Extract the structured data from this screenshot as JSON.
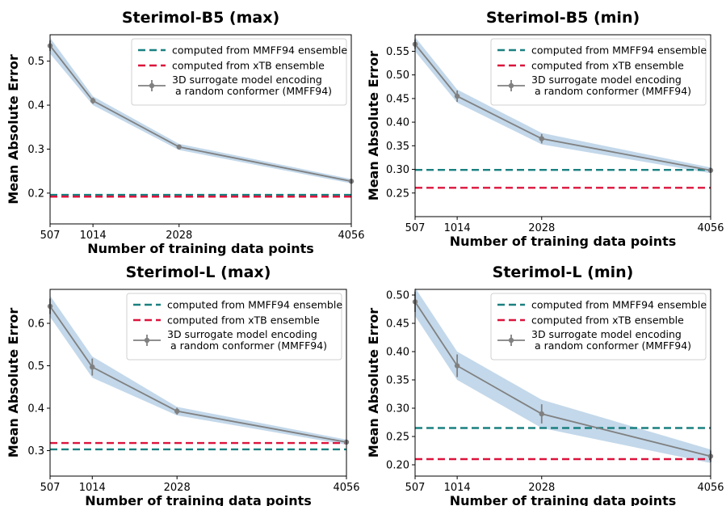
{
  "chart_data": [
    {
      "type": "line",
      "title": "Sterimol-B5 (max)",
      "xlabel": "Number of training data points",
      "ylabel": "Mean Absolute Error",
      "x": [
        507,
        1014,
        2028,
        4056
      ],
      "xticks": [
        "507",
        "1014",
        "2028",
        "4056"
      ],
      "xlim": [
        507,
        4056
      ],
      "ylim": [
        0.13,
        0.56
      ],
      "yticks": [
        0.2,
        0.3,
        0.4,
        0.5
      ],
      "ytick_labels": [
        "0.2",
        "0.3",
        "0.4",
        "0.5"
      ],
      "series": [
        {
          "name": "3D surrogate model encoding\n a random conformer (MMFF94)",
          "values": [
            0.535,
            0.41,
            0.305,
            0.227
          ],
          "err": [
            0.012,
            0.007,
            0.004,
            0.002
          ],
          "band": [
            0.018,
            0.01,
            0.007,
            0.005
          ],
          "color": "#808080",
          "style": "errorbar"
        },
        {
          "name": "computed from MMFF94 ensemble",
          "value": 0.196,
          "color": "#1a8080",
          "style": "hline-dashed"
        },
        {
          "name": "computed from xTB ensemble",
          "value": 0.192,
          "color": "#dc143c",
          "style": "hline-dashed"
        }
      ],
      "legend": "top-right"
    },
    {
      "type": "line",
      "title": "Sterimol-B5 (min)",
      "xlabel": "Number of training data points",
      "ylabel": "Mean Absolute Error",
      "x": [
        507,
        1014,
        2028,
        4056
      ],
      "xticks": [
        "507",
        "1014",
        "2028",
        "4056"
      ],
      "xlim": [
        507,
        4056
      ],
      "ylim": [
        0.2,
        0.585
      ],
      "yticks": [
        0.25,
        0.3,
        0.35,
        0.4,
        0.45,
        0.5,
        0.55
      ],
      "ytick_labels": [
        "0.25",
        "0.30",
        "0.35",
        "0.40",
        "0.45",
        "0.50",
        "0.55"
      ],
      "series": [
        {
          "name": "3D surrogate model encoding\n a random conformer (MMFF94)",
          "values": [
            0.565,
            0.455,
            0.365,
            0.298
          ],
          "err": [
            0.01,
            0.012,
            0.01,
            0.004
          ],
          "band": [
            0.015,
            0.014,
            0.012,
            0.006
          ],
          "color": "#808080",
          "style": "errorbar"
        },
        {
          "name": "computed from MMFF94 ensemble",
          "value": 0.299,
          "color": "#1a8080",
          "style": "hline-dashed"
        },
        {
          "name": "computed from xTB ensemble",
          "value": 0.261,
          "color": "#dc143c",
          "style": "hline-dashed"
        }
      ],
      "legend": "top-right"
    },
    {
      "type": "line",
      "title": "Sterimol-L (max)",
      "xlabel": "Number of training data points",
      "ylabel": "Mean Absolute Error",
      "x": [
        507,
        1014,
        2028,
        4056
      ],
      "xticks": [
        "507",
        "1014",
        "2028",
        "4056"
      ],
      "xlim": [
        507,
        4056
      ],
      "ylim": [
        0.24,
        0.68
      ],
      "yticks": [
        0.3,
        0.4,
        0.5,
        0.6
      ],
      "ytick_labels": [
        "0.3",
        "0.4",
        "0.5",
        "0.6"
      ],
      "series": [
        {
          "name": "3D surrogate model encoding\n a random conformer (MMFF94)",
          "values": [
            0.64,
            0.497,
            0.393,
            0.32
          ],
          "err": [
            0.018,
            0.02,
            0.008,
            0.004
          ],
          "band": [
            0.025,
            0.025,
            0.01,
            0.006
          ],
          "color": "#808080",
          "style": "errorbar"
        },
        {
          "name": "computed from MMFF94 ensemble",
          "value": 0.303,
          "color": "#1a8080",
          "style": "hline-dashed"
        },
        {
          "name": "computed from xTB ensemble",
          "value": 0.318,
          "color": "#dc143c",
          "style": "hline-dashed"
        }
      ],
      "legend": "top-right"
    },
    {
      "type": "line",
      "title": "Sterimol-L (min)",
      "xlabel": "Number of training data points",
      "ylabel": "Mean Absolute Error",
      "x": [
        507,
        1014,
        2028,
        4056
      ],
      "xticks": [
        "507",
        "1014",
        "2028",
        "4056"
      ],
      "xlim": [
        507,
        4056
      ],
      "ylim": [
        0.18,
        0.51
      ],
      "yticks": [
        0.2,
        0.25,
        0.3,
        0.35,
        0.4,
        0.45,
        0.5
      ],
      "ytick_labels": [
        "0.20",
        "0.25",
        "0.30",
        "0.35",
        "0.40",
        "0.45",
        "0.50"
      ],
      "series": [
        {
          "name": "3D surrogate model encoding\n a random conformer (MMFF94)",
          "values": [
            0.488,
            0.375,
            0.29,
            0.215
          ],
          "err": [
            0.018,
            0.02,
            0.017,
            0.01
          ],
          "band": [
            0.025,
            0.025,
            0.025,
            0.012
          ],
          "color": "#808080",
          "style": "errorbar"
        },
        {
          "name": "computed from MMFF94 ensemble",
          "value": 0.265,
          "color": "#1a8080",
          "style": "hline-dashed"
        },
        {
          "name": "computed from xTB ensemble",
          "value": 0.21,
          "color": "#dc143c",
          "style": "hline-dashed"
        }
      ],
      "legend": "top-right"
    }
  ],
  "colors": {
    "band": "#b9d1e6",
    "mmff": "#1a8080",
    "xtb": "#dc143c",
    "surrogate": "#808080"
  }
}
